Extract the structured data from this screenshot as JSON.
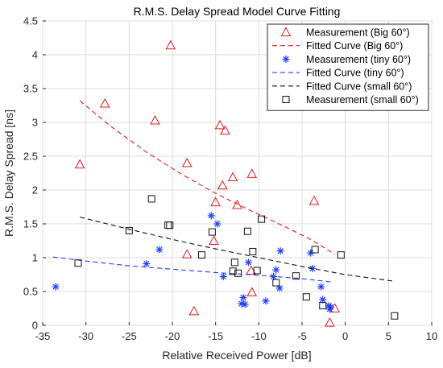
{
  "chart_data": {
    "type": "scatter",
    "title": "R.M.S. Delay Spread Model Curve Fitting",
    "xlabel": "Relative Received Power [dB]",
    "ylabel": "R.M.S. Delay Spread [ns]",
    "xlim": [
      -35,
      10
    ],
    "ylim": [
      0,
      4.5
    ],
    "xticks": [
      "-35",
      "-30",
      "-25",
      "-20",
      "-15",
      "-10",
      "-5",
      "0",
      "5",
      "10"
    ],
    "yticks": [
      "0",
      "0.5",
      "1",
      "1.5",
      "2",
      "2.5",
      "3",
      "3.5",
      "4",
      "4.5"
    ],
    "grid": true,
    "legend_position": "top-right",
    "series": [
      {
        "name": "Measurement (Big 60°)",
        "kind": "scatter",
        "marker": "triangle",
        "color": "#e41a1c",
        "points": [
          [
            -30.7,
            2.38
          ],
          [
            -27.8,
            3.28
          ],
          [
            -22.0,
            3.03
          ],
          [
            -20.2,
            4.14
          ],
          [
            -18.3,
            2.4
          ],
          [
            -17.5,
            0.21
          ],
          [
            -18.3,
            1.05
          ],
          [
            -15.2,
            1.25
          ],
          [
            -15.0,
            1.82
          ],
          [
            -14.5,
            2.96
          ],
          [
            -14.2,
            2.07
          ],
          [
            -13.9,
            2.88
          ],
          [
            -13.0,
            2.19
          ],
          [
            -12.5,
            1.78
          ],
          [
            -10.8,
            2.24
          ],
          [
            -10.8,
            0.49
          ],
          [
            -10.9,
            0.81
          ],
          [
            -3.6,
            1.84
          ],
          [
            -1.2,
            0.25
          ],
          [
            -1.8,
            0.04
          ]
        ]
      },
      {
        "name": "Fitted Curve (Big 60°)",
        "kind": "line",
        "dash": "6,4",
        "color": "#e41a1c",
        "points": [
          [
            -30.7,
            3.32
          ],
          [
            -27,
            2.93
          ],
          [
            -23,
            2.56
          ],
          [
            -19,
            2.24
          ],
          [
            -15,
            1.95
          ],
          [
            -11,
            1.7
          ],
          [
            -7,
            1.46
          ],
          [
            -4,
            1.27
          ],
          [
            -1.2,
            1.05
          ]
        ]
      },
      {
        "name": "Measurement (tiny 60°)",
        "kind": "scatter",
        "marker": "asterisk",
        "color": "#1f3fff",
        "points": [
          [
            -33.5,
            0.57
          ],
          [
            -23.0,
            0.91
          ],
          [
            -21.5,
            1.12
          ],
          [
            -15.5,
            1.62
          ],
          [
            -14.8,
            1.5
          ],
          [
            -14.1,
            0.72
          ],
          [
            -12.0,
            0.32
          ],
          [
            -11.8,
            0.41
          ],
          [
            -11.6,
            0.31
          ],
          [
            -11.2,
            0.93
          ],
          [
            -9.2,
            0.36
          ],
          [
            -8.3,
            0.72
          ],
          [
            -8.0,
            0.82
          ],
          [
            -7.6,
            0.55
          ],
          [
            -7.5,
            1.1
          ],
          [
            -4.0,
            1.07
          ],
          [
            -3.8,
            0.84
          ],
          [
            -2.8,
            0.57
          ],
          [
            -2.6,
            0.38
          ],
          [
            -1.9,
            0.29
          ],
          [
            -1.8,
            0.24
          ],
          [
            -1.7,
            0.27
          ]
        ]
      },
      {
        "name": "Fitted Curve (tiny 60°)",
        "kind": "line",
        "dash": "6,4",
        "color": "#1f3fff",
        "points": [
          [
            -33.8,
            1.01
          ],
          [
            -30,
            0.95
          ],
          [
            -25,
            0.88
          ],
          [
            -20,
            0.83
          ],
          [
            -15,
            0.78
          ],
          [
            -10,
            0.74
          ],
          [
            -5,
            0.69
          ],
          [
            -1.5,
            0.64
          ]
        ]
      },
      {
        "name": "Fitted Curve (small 60°)",
        "kind": "line",
        "dash": "6,4",
        "color": "#111111",
        "points": [
          [
            -30.7,
            1.6
          ],
          [
            -25,
            1.42
          ],
          [
            -20,
            1.27
          ],
          [
            -15,
            1.13
          ],
          [
            -10,
            1.0
          ],
          [
            -5,
            0.87
          ],
          [
            0,
            0.75
          ],
          [
            5.8,
            0.65
          ]
        ]
      },
      {
        "name": "Measurement (small 60°)",
        "kind": "scatter",
        "marker": "square",
        "color": "#111111",
        "points": [
          [
            -30.9,
            0.92
          ],
          [
            -25.0,
            1.4
          ],
          [
            -22.4,
            1.87
          ],
          [
            -20.5,
            1.48
          ],
          [
            -20.3,
            1.48
          ],
          [
            -16.6,
            1.04
          ],
          [
            -15.4,
            1.38
          ],
          [
            -13.0,
            0.8
          ],
          [
            -12.8,
            0.93
          ],
          [
            -12.4,
            0.77
          ],
          [
            -11.3,
            1.39
          ],
          [
            -10.7,
            1.09
          ],
          [
            -10.2,
            0.81
          ],
          [
            -9.7,
            1.57
          ],
          [
            -8.0,
            0.63
          ],
          [
            -5.7,
            0.73
          ],
          [
            -4.5,
            0.42
          ],
          [
            -3.5,
            1.12
          ],
          [
            -2.6,
            0.29
          ],
          [
            -0.5,
            1.04
          ],
          [
            5.7,
            0.14
          ]
        ]
      }
    ]
  }
}
